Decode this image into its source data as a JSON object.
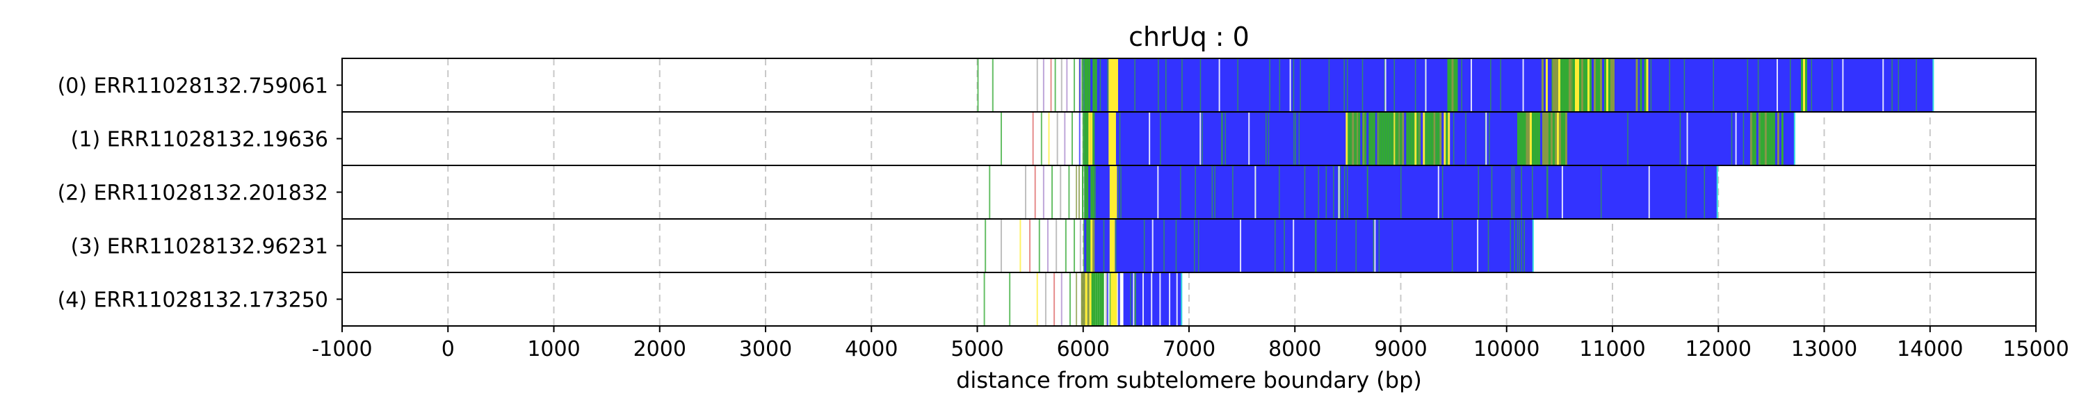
{
  "chart_data": {
    "type": "bar",
    "title": "chrUq : 0",
    "xlabel": "distance from subtelomere boundary (bp)",
    "ylabel": "",
    "xlim": [
      -1000,
      15000
    ],
    "xticks": [
      -1000,
      0,
      1000,
      2000,
      3000,
      4000,
      5000,
      6000,
      7000,
      8000,
      9000,
      10000,
      11000,
      12000,
      13000,
      14000,
      15000
    ],
    "xtick_labels": [
      "-1000",
      "0",
      "1000",
      "2000",
      "3000",
      "4000",
      "5000",
      "6000",
      "7000",
      "8000",
      "9000",
      "10000",
      "11000",
      "12000",
      "13000",
      "14000",
      "15000"
    ],
    "grid": "vertical dashed",
    "colors": {
      "blue": "#3333ff",
      "yellow": "#ffee33",
      "green": "#33aa33",
      "olive": "#889944",
      "purple": "#aa88cc",
      "red": "#dd6666",
      "grey": "#aaaaaa",
      "cyan": "#33dddd",
      "white": "#ffffff"
    },
    "reads": [
      {
        "label": "(0) ERR11028132.759061",
        "end": 14030,
        "fill_start": 6010,
        "scatter_marks": [
          [
            5000,
            "green"
          ],
          [
            5140,
            "green"
          ],
          [
            5560,
            "grey"
          ],
          [
            5620,
            "purple"
          ],
          [
            5690,
            "red"
          ],
          [
            5730,
            "green"
          ],
          [
            5790,
            "grey"
          ],
          [
            5840,
            "purple"
          ],
          [
            5910,
            "green"
          ],
          [
            5960,
            "olive"
          ]
        ],
        "yellow_bands": [
          [
            6240,
            6330
          ]
        ],
        "green_regions": [
          [
            6010,
            6120
          ],
          [
            9440,
            9520
          ],
          [
            10330,
            11000
          ],
          [
            11220,
            11320
          ],
          [
            12780,
            12830
          ]
        ],
        "white_lines": [
          7280,
          7950,
          8850,
          9230,
          9660,
          10150,
          12550,
          13170,
          13550
        ]
      },
      {
        "label": "(1) ERR11028132.19636",
        "end": 12720,
        "fill_start": 6010,
        "scatter_marks": [
          [
            5220,
            "green"
          ],
          [
            5520,
            "red"
          ],
          [
            5600,
            "green"
          ],
          [
            5670,
            "yellow"
          ],
          [
            5750,
            "grey"
          ],
          [
            5820,
            "purple"
          ],
          [
            5890,
            "green"
          ]
        ],
        "yellow_bands": [
          [
            6240,
            6310
          ]
        ],
        "green_regions": [
          [
            6010,
            6100
          ],
          [
            8480,
            9480
          ],
          [
            10100,
            10560
          ],
          [
            12300,
            12620
          ]
        ],
        "white_lines": [
          6620,
          7100,
          7560,
          9800,
          11700,
          12160
        ]
      },
      {
        "label": "(2) ERR11028132.201832",
        "end": 11990,
        "fill_start": 6010,
        "scatter_marks": [
          [
            5110,
            "green"
          ],
          [
            5450,
            "grey"
          ],
          [
            5540,
            "red"
          ],
          [
            5620,
            "purple"
          ],
          [
            5700,
            "green"
          ],
          [
            5780,
            "grey"
          ],
          [
            5860,
            "green"
          ],
          [
            5930,
            "olive"
          ]
        ],
        "yellow_bands": [
          [
            6250,
            6320
          ]
        ],
        "green_regions": [
          [
            6010,
            6110
          ]
        ],
        "white_lines": [
          6700,
          7620,
          8410,
          9350,
          10520,
          11340
        ]
      },
      {
        "label": "(3) ERR11028132.96231",
        "end": 10250,
        "fill_start": 6010,
        "scatter_marks": [
          [
            5070,
            "green"
          ],
          [
            5220,
            "grey"
          ],
          [
            5400,
            "yellow"
          ],
          [
            5490,
            "red"
          ],
          [
            5580,
            "green"
          ],
          [
            5660,
            "purple"
          ],
          [
            5740,
            "grey"
          ],
          [
            5830,
            "green"
          ],
          [
            5910,
            "green"
          ]
        ],
        "yellow_bands": [
          [
            6250,
            6300
          ]
        ],
        "green_regions": [
          [
            6010,
            6100
          ]
        ],
        "white_lines": [
          6650,
          7480,
          7980,
          8750,
          9720
        ]
      },
      {
        "label": "(4) ERR11028132.173250",
        "end": 6930,
        "fill_start": 6380,
        "scatter_marks": [
          [
            5060,
            "green"
          ],
          [
            5300,
            "green"
          ],
          [
            5560,
            "yellow"
          ],
          [
            5640,
            "grey"
          ],
          [
            5720,
            "red"
          ],
          [
            5790,
            "purple"
          ],
          [
            5870,
            "green"
          ],
          [
            5930,
            "olive"
          ]
        ],
        "yellow_bands": [
          [
            6260,
            6320
          ]
        ],
        "green_regions": [
          [
            5980,
            6180
          ]
        ],
        "white_lines": [
          6470,
          6560,
          6640,
          6720,
          6810,
          6880
        ]
      }
    ]
  }
}
